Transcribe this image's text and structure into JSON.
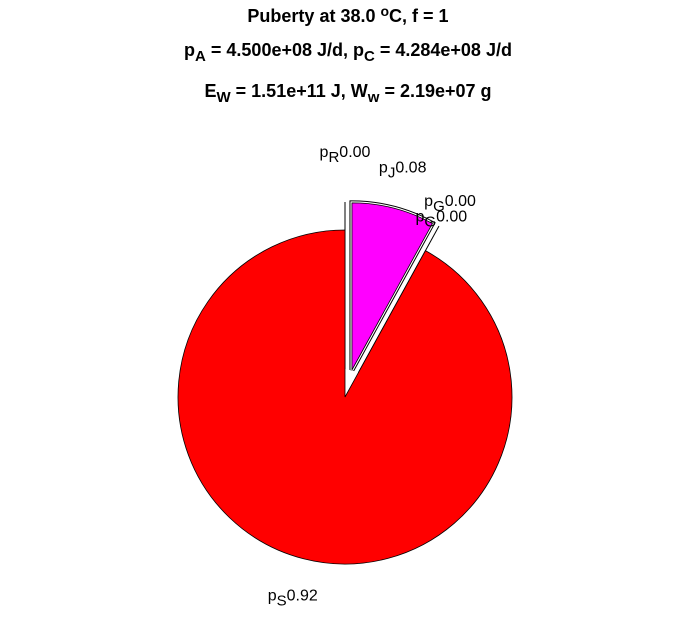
{
  "chart_data": {
    "type": "pie",
    "title_lines": [
      [
        {
          "text": "Puberty at 38.0 "
        },
        {
          "text": "o",
          "style": "sup"
        },
        {
          "text": "C, f = 1"
        }
      ],
      [
        {
          "text": "p"
        },
        {
          "text": "A",
          "style": "sub"
        },
        {
          "text": " = 4.500e+08 J/d,  p"
        },
        {
          "text": "C",
          "style": "sub"
        },
        {
          "text": " = 4.284e+08 J/d"
        }
      ],
      [
        {
          "text": "E"
        },
        {
          "text": "W",
          "style": "sub"
        },
        {
          "text": " = 1.51e+11 J, W"
        },
        {
          "text": "w",
          "style": "sub"
        },
        {
          "text": " = 2.19e+07 g"
        }
      ]
    ],
    "categories": [
      {
        "symbol": "p",
        "sub": "R"
      },
      {
        "symbol": "p",
        "sub": "J"
      },
      {
        "symbol": "p",
        "sub": "G"
      },
      {
        "symbol": "p",
        "sub": "G"
      },
      {
        "symbol": "p",
        "sub": "S"
      }
    ],
    "values": [
      0,
      0.08,
      0,
      0,
      0.92
    ],
    "value_labels": [
      "0.00",
      "0.08",
      "0.00",
      "0.00",
      "0.92"
    ],
    "colors": [
      "#ffffff",
      "#ff00ff",
      "#ffffff",
      "#ffffff",
      "#ff0000"
    ],
    "explode": [
      1,
      1,
      1,
      1,
      0
    ]
  }
}
